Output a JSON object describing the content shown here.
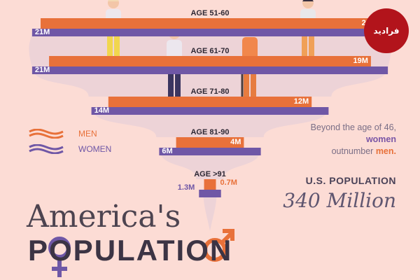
{
  "chart_data": {
    "type": "bar",
    "subtype": "population-pyramid",
    "categories": [
      "AGE 51-60",
      "AGE 61-70",
      "AGE 71-80",
      "AGE 81-90",
      "AGE >91"
    ],
    "series": [
      {
        "name": "MEN",
        "color": "#e8713a",
        "values": [
          20,
          19,
          12,
          4,
          0.7
        ],
        "labels": [
          "20M",
          "19M",
          "12M",
          "4M",
          "0.7M"
        ]
      },
      {
        "name": "WOMEN",
        "color": "#6f57a6",
        "values": [
          21,
          21,
          14,
          6,
          1.3
        ],
        "labels": [
          "21M",
          "21M",
          "14M",
          "6M",
          "1.3M"
        ]
      }
    ]
  },
  "legend": {
    "men": "MEN",
    "women": "WOMEN"
  },
  "note": {
    "text_before": "Beyond the age of 46,",
    "women": "women",
    "text_mid": "outnumber",
    "men": "men."
  },
  "population": {
    "label": "U.S. POPULATION",
    "value": "340 Million"
  },
  "title": {
    "line1": "America's",
    "line2": "POPULATION"
  },
  "logo": {
    "text": "فرادید"
  },
  "colors": {
    "background": "#fcdcd5",
    "men": "#e8713a",
    "women": "#6f57a6",
    "flow": "#e3cdd9"
  }
}
